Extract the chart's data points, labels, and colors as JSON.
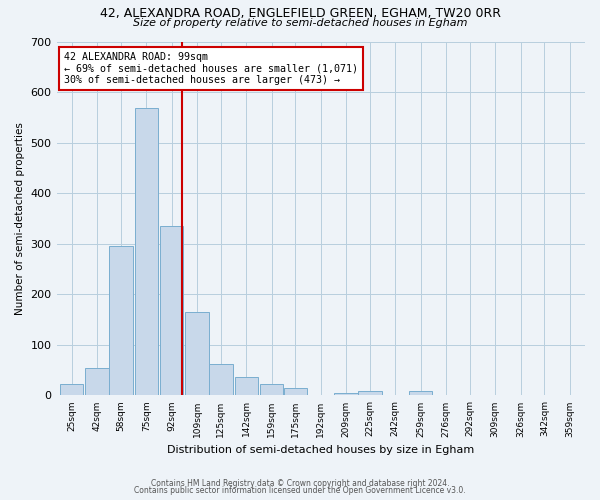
{
  "title1": "42, ALEXANDRA ROAD, ENGLEFIELD GREEN, EGHAM, TW20 0RR",
  "title2": "Size of property relative to semi-detached houses in Egham",
  "xlabel": "Distribution of semi-detached houses by size in Egham",
  "ylabel": "Number of semi-detached properties",
  "bar_color": "#c8d8ea",
  "bar_edge_color": "#7aaed0",
  "bar_values": [
    22,
    55,
    295,
    568,
    335,
    165,
    62,
    37,
    22,
    15,
    0,
    5,
    8,
    0,
    8,
    0,
    0,
    0,
    0,
    0,
    0
  ],
  "x_labels": [
    "25sqm",
    "42sqm",
    "58sqm",
    "75sqm",
    "92sqm",
    "109sqm",
    "125sqm",
    "142sqm",
    "159sqm",
    "175sqm",
    "192sqm",
    "209sqm",
    "225sqm",
    "242sqm",
    "259sqm",
    "276sqm",
    "292sqm",
    "309sqm",
    "326sqm",
    "342sqm",
    "359sqm"
  ],
  "bin_centers": [
    25,
    42,
    58,
    75,
    92,
    109,
    125,
    142,
    159,
    175,
    192,
    209,
    225,
    242,
    259,
    276,
    292,
    309,
    326,
    342,
    359
  ],
  "bin_width": 17,
  "vline_x": 99,
  "vline_color": "#cc0000",
  "ylim": [
    0,
    700
  ],
  "yticks": [
    0,
    100,
    200,
    300,
    400,
    500,
    600,
    700
  ],
  "annotation_title": "42 ALEXANDRA ROAD: 99sqm",
  "annotation_line1": "← 69% of semi-detached houses are smaller (1,071)",
  "annotation_line2": "30% of semi-detached houses are larger (473) →",
  "annotation_box_color": "#ffffff",
  "annotation_box_edgecolor": "#cc0000",
  "footer1": "Contains HM Land Registry data © Crown copyright and database right 2024.",
  "footer2": "Contains public sector information licensed under the Open Government Licence v3.0.",
  "background_color": "#eef3f8",
  "plot_bg_color": "#eef3f8",
  "grid_color": "#b8cede"
}
